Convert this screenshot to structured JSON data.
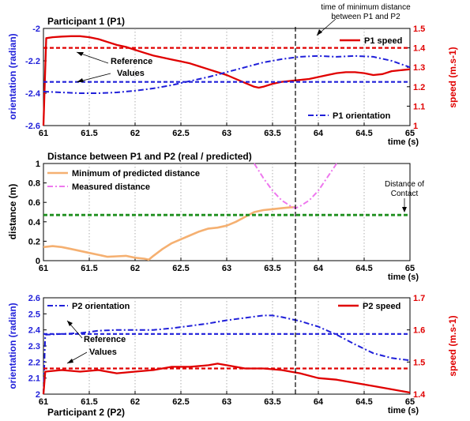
{
  "colors": {
    "blue": "#1f1fd9",
    "red": "#e00000",
    "orange": "#f5b071",
    "magenta": "#ee77ee",
    "green": "#1f8f1f",
    "black": "#000000"
  },
  "annotation_top": {
    "line1": "time of minimum distance",
    "line2": "between P1 and P2"
  },
  "chart_data": [
    {
      "type": "line",
      "title": "Participant 1 (P1)",
      "xlabel": "time (s)",
      "ylabel": "orientation (radian)",
      "y2label": "speed (m.s-1)",
      "xlim": [
        61,
        65
      ],
      "ylim": [
        -2.6,
        -2
      ],
      "y2lim": [
        1,
        1.5
      ],
      "x_ticks": [
        "61",
        "61.5",
        "62",
        "62.5",
        "63",
        "63.5",
        "64",
        "64.5",
        "65"
      ],
      "y_ticks": [
        "-2",
        "-2.2",
        "-2.4",
        "-2.6"
      ],
      "y2_ticks": [
        "1.5",
        "1.4",
        "1.3",
        "1.2",
        "1.1",
        "1"
      ],
      "grid": "vertical dotted",
      "legend": [
        "P1 speed",
        "P1 orientation"
      ],
      "annotation": {
        "line1": "Reference",
        "line2": "Values"
      },
      "vline_x": 63.75,
      "series": [
        {
          "name": "P1 speed",
          "axis": "right",
          "style": "solid",
          "x": [
            61,
            61.03,
            61.1,
            61.2,
            61.3,
            61.4,
            61.5,
            61.6,
            61.7,
            61.8,
            61.9,
            62,
            62.1,
            62.2,
            62.3,
            62.4,
            62.5,
            62.6,
            62.7,
            62.8,
            62.9,
            63,
            63.1,
            63.2,
            63.3,
            63.35,
            63.4,
            63.5,
            63.6,
            63.7,
            63.8,
            63.9,
            64,
            64.1,
            64.2,
            64.3,
            64.4,
            64.5,
            64.6,
            64.7,
            64.8,
            64.9,
            65
          ],
          "y": [
            1.0,
            1.45,
            1.455,
            1.458,
            1.46,
            1.46,
            1.455,
            1.445,
            1.43,
            1.415,
            1.405,
            1.39,
            1.375,
            1.36,
            1.35,
            1.34,
            1.33,
            1.32,
            1.305,
            1.29,
            1.275,
            1.26,
            1.24,
            1.22,
            1.2,
            1.195,
            1.2,
            1.215,
            1.225,
            1.23,
            1.235,
            1.24,
            1.25,
            1.26,
            1.27,
            1.275,
            1.275,
            1.27,
            1.26,
            1.265,
            1.28,
            1.285,
            1.29
          ]
        },
        {
          "name": "P1 orientation",
          "axis": "left",
          "style": "dashdot",
          "x": [
            61,
            61.2,
            61.4,
            61.6,
            61.8,
            62,
            62.2,
            62.4,
            62.6,
            62.8,
            63,
            63.2,
            63.4,
            63.6,
            63.8,
            64,
            64.2,
            64.4,
            64.6,
            64.8,
            65
          ],
          "y": [
            -2.39,
            -2.395,
            -2.4,
            -2.4,
            -2.395,
            -2.385,
            -2.37,
            -2.35,
            -2.325,
            -2.3,
            -2.27,
            -2.24,
            -2.21,
            -2.19,
            -2.175,
            -2.17,
            -2.175,
            -2.17,
            -2.175,
            -2.2,
            -2.24
          ]
        },
        {
          "name": "P1 speed reference",
          "axis": "right",
          "style": "dashed",
          "x": [
            61,
            65
          ],
          "y": [
            1.4,
            1.4
          ]
        },
        {
          "name": "P1 orientation reference",
          "axis": "left",
          "style": "dashed",
          "x": [
            61,
            65
          ],
          "y": [
            -2.33,
            -2.33
          ]
        }
      ]
    },
    {
      "type": "line",
      "title": "Distance between P1 and P2 (real / predicted)",
      "xlabel": "time (s)",
      "ylabel": "distance (m)",
      "xlim": [
        61,
        65
      ],
      "ylim": [
        0,
        1
      ],
      "x_ticks": [
        "61",
        "61.5",
        "62",
        "62.5",
        "63",
        "63.5",
        "64",
        "64.5",
        "65"
      ],
      "y_ticks": [
        "1",
        "0.8",
        "0.6",
        "0.4",
        "0.2",
        "0"
      ],
      "grid": "vertical dotted",
      "legend": [
        "Minimum of predicted distance",
        "Measured distance"
      ],
      "annotation": {
        "line1": "Distance of",
        "line2": "Contact"
      },
      "vline_x": 63.75,
      "series": [
        {
          "name": "Minimum of predicted distance",
          "style": "solid",
          "x": [
            61,
            61.1,
            61.2,
            61.3,
            61.4,
            61.5,
            61.6,
            61.7,
            61.8,
            61.9,
            62,
            62.1,
            62.15,
            62.2,
            62.3,
            62.4,
            62.5,
            62.6,
            62.7,
            62.8,
            62.9,
            63,
            63.1,
            63.2,
            63.3,
            63.4,
            63.5,
            63.6,
            63.7,
            63.75
          ],
          "y": [
            0.14,
            0.15,
            0.14,
            0.12,
            0.1,
            0.08,
            0.06,
            0.04,
            0.045,
            0.05,
            0.03,
            0.02,
            0.01,
            0.05,
            0.12,
            0.18,
            0.22,
            0.26,
            0.3,
            0.33,
            0.34,
            0.36,
            0.4,
            0.45,
            0.5,
            0.52,
            0.53,
            0.54,
            0.55,
            0.55
          ]
        },
        {
          "name": "Measured distance",
          "style": "dashdot",
          "x": [
            63.3,
            63.4,
            63.5,
            63.6,
            63.7,
            63.75,
            63.8,
            63.9,
            64,
            64.1,
            64.2
          ],
          "y": [
            1.0,
            0.85,
            0.72,
            0.62,
            0.56,
            0.54,
            0.56,
            0.62,
            0.72,
            0.86,
            1.0
          ]
        },
        {
          "name": "Distance of Contact",
          "style": "dashed",
          "x": [
            61,
            65
          ],
          "y": [
            0.47,
            0.47
          ]
        }
      ]
    },
    {
      "type": "line",
      "title": "Participant 2 (P2)",
      "xlabel": "time (s)",
      "ylabel": "orientation (radian)",
      "y2label": "speed (m.s-1)",
      "xlim": [
        61,
        65
      ],
      "ylim": [
        2,
        2.6
      ],
      "y2lim": [
        1.4,
        1.7
      ],
      "x_ticks": [
        "61",
        "61.5",
        "62",
        "62.5",
        "63",
        "63.5",
        "64",
        "64.5",
        "65"
      ],
      "y_ticks": [
        "2.6",
        "2.5",
        "2.4",
        "2.3",
        "2.2",
        "2.1",
        "2"
      ],
      "y2_ticks": [
        "1.7",
        "1.6",
        "1.5",
        "1.4"
      ],
      "grid": "vertical dotted",
      "legend": [
        "P2 orientation",
        "P2 speed"
      ],
      "annotation": {
        "line1": "Reference",
        "line2": "Values"
      },
      "vline_x": 63.75,
      "series": [
        {
          "name": "P2 orientation",
          "axis": "left",
          "style": "dashdot",
          "x": [
            61,
            61.02,
            61.2,
            61.4,
            61.6,
            61.8,
            62,
            62.2,
            62.4,
            62.6,
            62.8,
            63,
            63.2,
            63.4,
            63.5,
            63.6,
            63.8,
            64,
            64.2,
            64.4,
            64.6,
            64.8,
            65
          ],
          "y": [
            2.0,
            2.37,
            2.375,
            2.38,
            2.395,
            2.4,
            2.4,
            2.4,
            2.41,
            2.425,
            2.44,
            2.46,
            2.475,
            2.49,
            2.49,
            2.48,
            2.455,
            2.42,
            2.37,
            2.31,
            2.255,
            2.225,
            2.21
          ]
        },
        {
          "name": "P2 speed",
          "axis": "right",
          "style": "solid",
          "x": [
            61,
            61.02,
            61.2,
            61.4,
            61.6,
            61.8,
            62,
            62.2,
            62.4,
            62.6,
            62.8,
            62.9,
            63,
            63.2,
            63.4,
            63.6,
            63.8,
            64,
            64.2,
            64.4,
            64.6,
            64.8,
            65
          ],
          "y": [
            1.4,
            1.47,
            1.475,
            1.47,
            1.475,
            1.465,
            1.47,
            1.475,
            1.485,
            1.485,
            1.49,
            1.495,
            1.49,
            1.48,
            1.48,
            1.475,
            1.465,
            1.45,
            1.445,
            1.435,
            1.425,
            1.415,
            1.405
          ]
        },
        {
          "name": "P2 orientation reference",
          "axis": "left",
          "style": "dashed",
          "x": [
            61,
            65
          ],
          "y": [
            2.375,
            2.375
          ]
        },
        {
          "name": "P2 speed reference",
          "axis": "right",
          "style": "dashed",
          "x": [
            61,
            65
          ],
          "y": [
            1.48,
            1.48
          ]
        }
      ]
    }
  ]
}
